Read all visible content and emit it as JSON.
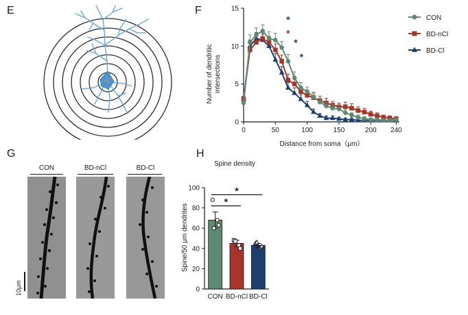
{
  "panels": {
    "E": "E",
    "F": "F",
    "G": "G",
    "H": "H"
  },
  "colors": {
    "con": "#5f8a72",
    "bd_ncl": "#a8342a",
    "bd_cl": "#1d3f6e",
    "neuron": "#6aa8d8",
    "neuron_soma": "#4c95cc"
  },
  "chart_data": [
    {
      "type": "line",
      "panel": "F",
      "title": "",
      "xlabel": "Distance from soma（μm）",
      "ylabel": "Number of dendritic intersections",
      "ylabel_lines": [
        "Number of dendritic",
        "intersections"
      ],
      "xlim": [
        0,
        245
      ],
      "ylim": [
        0,
        15
      ],
      "xticks": [
        0,
        50,
        100,
        150,
        200,
        240
      ],
      "yticks": [
        0,
        5,
        10,
        15
      ],
      "legend_position": "top-right",
      "x": [
        0,
        10,
        20,
        30,
        40,
        50,
        60,
        70,
        80,
        90,
        100,
        110,
        120,
        130,
        140,
        150,
        160,
        170,
        180,
        190,
        200,
        210,
        220,
        230,
        240
      ],
      "series": [
        {
          "name": "CON",
          "color": "#5f8a72",
          "marker": "circle",
          "values": [
            2.5,
            10.5,
            11.5,
            12.0,
            11.0,
            10.8,
            9.8,
            8.0,
            5.8,
            4.5,
            4.0,
            3.3,
            2.6,
            2.1,
            1.8,
            1.7,
            1.2,
            0.9,
            0.6,
            0.4,
            0.3,
            0.3,
            0.2,
            0.2,
            0.3
          ],
          "errors": [
            0.4,
            1.0,
            0.9,
            0.8,
            0.9,
            0.9,
            0.8,
            0.9,
            0.8,
            0.7,
            0.6,
            0.6,
            0.5,
            0.5,
            0.5,
            0.5,
            0.4,
            0.3,
            0.3,
            0.3,
            0.2,
            0.2,
            0.2,
            0.2,
            0.2
          ]
        },
        {
          "name": "BD-nCl",
          "color": "#a8342a",
          "marker": "square",
          "values": [
            3.0,
            9.5,
            10.5,
            11.0,
            10.5,
            9.5,
            8.0,
            5.5,
            5.0,
            4.0,
            3.5,
            3.2,
            2.8,
            2.5,
            2.2,
            2.0,
            2.0,
            1.8,
            1.5,
            1.3,
            1.0,
            0.8,
            0.6,
            0.5,
            0.4
          ],
          "errors": [
            0.4,
            0.9,
            0.9,
            0.9,
            0.8,
            0.8,
            0.8,
            0.8,
            0.7,
            0.7,
            0.6,
            0.6,
            0.6,
            0.6,
            0.5,
            0.5,
            0.6,
            0.6,
            0.5,
            0.5,
            0.4,
            0.4,
            0.3,
            0.3,
            0.3
          ]
        },
        {
          "name": "BD-Cl",
          "color": "#1d3f6e",
          "marker": "triangle",
          "values": [
            3.0,
            10.0,
            11.0,
            10.8,
            10.0,
            8.2,
            6.5,
            4.5,
            3.8,
            3.0,
            2.2,
            1.3,
            0.8,
            0.5,
            0.5,
            0.4,
            0.3,
            0.3,
            0.2,
            0.2,
            0.2,
            0.2,
            0.2,
            0.2,
            0.2
          ],
          "errors": [
            0.3,
            0.8,
            0.8,
            0.8,
            0.8,
            0.8,
            0.8,
            0.7,
            0.7,
            0.6,
            0.5,
            0.4,
            0.3,
            0.3,
            0.3,
            0.2,
            0.2,
            0.2,
            0.2,
            0.2,
            0.2,
            0.2,
            0.2,
            0.2,
            0.2
          ]
        }
      ],
      "annotations": [
        {
          "text": "*",
          "x": 70,
          "y": 13.5,
          "color": "#1d3f6e"
        },
        {
          "text": "*",
          "x": 70,
          "y": 11.7,
          "color": "#a8342a"
        },
        {
          "text": "*",
          "x": 82,
          "y": 10.5,
          "color": "#1d3f6e"
        },
        {
          "text": "*",
          "x": 91,
          "y": 8.6,
          "color": "#1d3f6e"
        }
      ]
    },
    {
      "type": "bar",
      "panel": "H",
      "title": "Spine density",
      "xlabel": "",
      "ylabel": "Spine/50 μm dendrites",
      "categories": [
        "CON",
        "BD-nCl",
        "BD-Cl"
      ],
      "values": [
        68,
        45,
        43
      ],
      "errors": [
        8,
        3,
        2
      ],
      "colors": [
        "#5f8a72",
        "#a8342a",
        "#1d3f6e"
      ],
      "points": [
        [
          88,
          68,
          60,
          63
        ],
        [
          48,
          43,
          47,
          40
        ],
        [
          45,
          41,
          46,
          42
        ]
      ],
      "point_markers": [
        "circle",
        "square",
        "triangle"
      ],
      "ylim": [
        0,
        100
      ],
      "yticks": [
        0,
        20,
        40,
        60,
        80,
        100
      ],
      "significance": [
        {
          "from": "CON",
          "to": "BD-nCl",
          "label": "*"
        },
        {
          "from": "CON",
          "to": "BD-Cl",
          "label": "*"
        }
      ]
    }
  ],
  "images_G": {
    "labels": [
      "CON",
      "BD-nCl",
      "BD-Cl"
    ],
    "scale_bar": "10μm"
  }
}
